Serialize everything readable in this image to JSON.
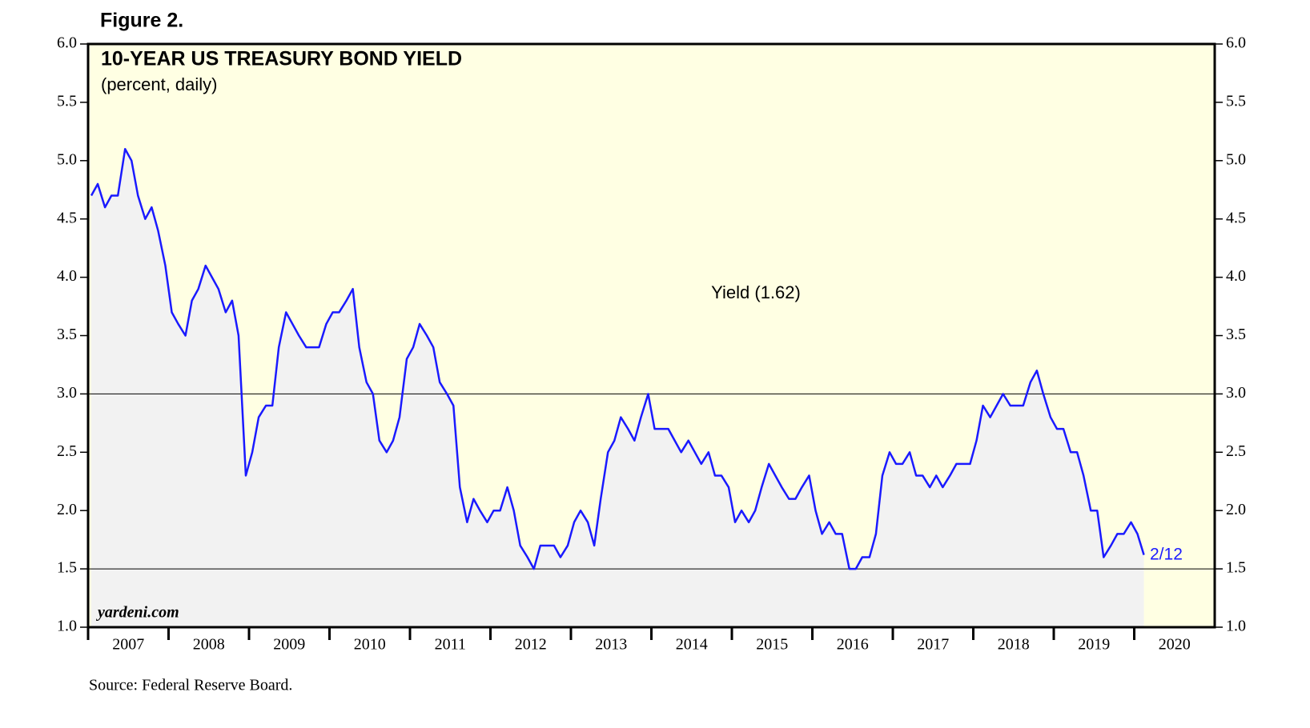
{
  "chart_data": {
    "type": "line",
    "figure_label": "Figure 2.",
    "title": "10-YEAR US TREASURY BOND YIELD",
    "subtitle": "(percent, daily)",
    "annotation": "Yield (1.62)",
    "last_date_label": "2/12",
    "watermark": "yardeni.com",
    "source": "Source: Federal Reserve Board.",
    "ylim": [
      1.0,
      6.0
    ],
    "yticks": [
      {
        "value": 1.0,
        "label": "1.0"
      },
      1.5,
      {
        "value": 2.0,
        "label": "2.0"
      },
      2.5,
      {
        "value": 3.0,
        "label": "3.0"
      },
      3.5,
      {
        "value": 4.0,
        "label": "4.0"
      },
      4.5,
      {
        "value": 5.0,
        "label": "5.0"
      },
      5.5,
      {
        "value": 6.0,
        "label": "6.0"
      }
    ],
    "hlines": [
      1.5,
      3.0
    ],
    "xlim": [
      2007,
      2021
    ],
    "xticks": [
      {
        "value": 2007,
        "label": "2007"
      },
      {
        "value": 2008,
        "label": "2008"
      },
      {
        "value": 2009,
        "label": "2009"
      },
      {
        "value": 2010,
        "label": "2010"
      },
      {
        "value": 2011,
        "label": "2011"
      },
      {
        "value": 2012,
        "label": "2012"
      },
      {
        "value": 2013,
        "label": "2013"
      },
      {
        "value": 2014,
        "label": "2014"
      },
      {
        "value": 2015,
        "label": "2015"
      },
      {
        "value": 2016,
        "label": "2016"
      },
      {
        "value": 2017,
        "label": "2017"
      },
      {
        "value": 2018,
        "label": "2018"
      },
      {
        "value": 2019,
        "label": "2019"
      },
      {
        "value": 2020,
        "label": "2020"
      }
    ],
    "x": [
      2007.04,
      2007.12,
      2007.21,
      2007.29,
      2007.37,
      2007.46,
      2007.54,
      2007.62,
      2007.71,
      2007.79,
      2007.87,
      2007.96,
      2008.04,
      2008.12,
      2008.21,
      2008.29,
      2008.37,
      2008.46,
      2008.54,
      2008.62,
      2008.71,
      2008.79,
      2008.87,
      2008.96,
      2009.04,
      2009.12,
      2009.21,
      2009.29,
      2009.37,
      2009.46,
      2009.54,
      2009.62,
      2009.71,
      2009.79,
      2009.87,
      2009.96,
      2010.04,
      2010.12,
      2010.21,
      2010.29,
      2010.37,
      2010.46,
      2010.54,
      2010.62,
      2010.71,
      2010.79,
      2010.87,
      2010.96,
      2011.04,
      2011.12,
      2011.21,
      2011.29,
      2011.37,
      2011.46,
      2011.54,
      2011.62,
      2011.71,
      2011.79,
      2011.87,
      2011.96,
      2012.04,
      2012.12,
      2012.21,
      2012.29,
      2012.37,
      2012.46,
      2012.54,
      2012.62,
      2012.71,
      2012.79,
      2012.87,
      2012.96,
      2013.04,
      2013.12,
      2013.21,
      2013.29,
      2013.37,
      2013.46,
      2013.54,
      2013.62,
      2013.71,
      2013.79,
      2013.87,
      2013.96,
      2014.04,
      2014.12,
      2014.21,
      2014.29,
      2014.37,
      2014.46,
      2014.54,
      2014.62,
      2014.71,
      2014.79,
      2014.87,
      2014.96,
      2015.04,
      2015.12,
      2015.21,
      2015.29,
      2015.37,
      2015.46,
      2015.54,
      2015.62,
      2015.71,
      2015.79,
      2015.87,
      2015.96,
      2016.04,
      2016.12,
      2016.21,
      2016.29,
      2016.37,
      2016.46,
      2016.54,
      2016.62,
      2016.71,
      2016.79,
      2016.87,
      2016.96,
      2017.04,
      2017.12,
      2017.21,
      2017.29,
      2017.37,
      2017.46,
      2017.54,
      2017.62,
      2017.71,
      2017.79,
      2017.87,
      2017.96,
      2018.04,
      2018.12,
      2018.21,
      2018.29,
      2018.37,
      2018.46,
      2018.54,
      2018.62,
      2018.71,
      2018.79,
      2018.87,
      2018.96,
      2019.04,
      2019.12,
      2019.21,
      2019.29,
      2019.37,
      2019.46,
      2019.54,
      2019.62,
      2019.71,
      2019.79,
      2019.87,
      2019.96,
      2020.04,
      2020.12
    ],
    "series": [
      {
        "name": "Yield",
        "color": "#1a1aff",
        "values": [
          4.7,
          4.8,
          4.6,
          4.7,
          4.7,
          5.1,
          5.0,
          4.7,
          4.5,
          4.6,
          4.4,
          4.1,
          3.7,
          3.6,
          3.5,
          3.8,
          3.9,
          4.1,
          4.0,
          3.9,
          3.7,
          3.8,
          3.5,
          2.3,
          2.5,
          2.8,
          2.9,
          2.9,
          3.4,
          3.7,
          3.6,
          3.5,
          3.4,
          3.4,
          3.4,
          3.6,
          3.7,
          3.7,
          3.8,
          3.9,
          3.4,
          3.1,
          3.0,
          2.6,
          2.5,
          2.6,
          2.8,
          3.3,
          3.4,
          3.6,
          3.5,
          3.4,
          3.1,
          3.0,
          2.9,
          2.2,
          1.9,
          2.1,
          2.0,
          1.9,
          2.0,
          2.0,
          2.2,
          2.0,
          1.7,
          1.6,
          1.5,
          1.7,
          1.7,
          1.7,
          1.6,
          1.7,
          1.9,
          2.0,
          1.9,
          1.7,
          2.1,
          2.5,
          2.6,
          2.8,
          2.7,
          2.6,
          2.8,
          3.0,
          2.7,
          2.7,
          2.7,
          2.6,
          2.5,
          2.6,
          2.5,
          2.4,
          2.5,
          2.3,
          2.3,
          2.2,
          1.9,
          2.0,
          1.9,
          2.0,
          2.2,
          2.4,
          2.3,
          2.2,
          2.1,
          2.1,
          2.2,
          2.3,
          2.0,
          1.8,
          1.9,
          1.8,
          1.8,
          1.5,
          1.5,
          1.6,
          1.6,
          1.8,
          2.3,
          2.5,
          2.4,
          2.4,
          2.5,
          2.3,
          2.3,
          2.2,
          2.3,
          2.2,
          2.3,
          2.4,
          2.4,
          2.4,
          2.6,
          2.9,
          2.8,
          2.9,
          3.0,
          2.9,
          2.9,
          2.9,
          3.1,
          3.2,
          3.0,
          2.8,
          2.7,
          2.7,
          2.5,
          2.5,
          2.3,
          2.0,
          2.0,
          1.6,
          1.7,
          1.8,
          1.8,
          1.9,
          1.8,
          1.62
        ]
      }
    ]
  }
}
